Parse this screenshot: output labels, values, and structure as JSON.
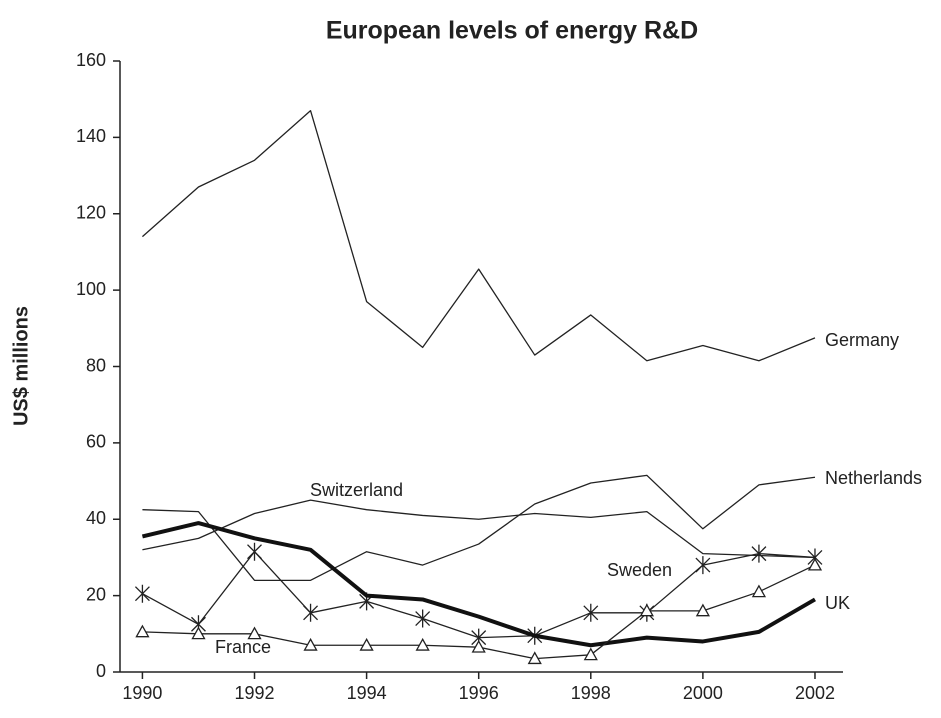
{
  "chart_data": {
    "type": "line",
    "title": "European levels of energy R&D",
    "y_label": "US$ millions",
    "x": [
      1990,
      1991,
      1992,
      1993,
      1994,
      1995,
      1996,
      1997,
      1998,
      1999,
      2000,
      2001,
      2002
    ],
    "xlim": [
      1989.6,
      2002.5
    ],
    "xticks": [
      1990,
      1992,
      1994,
      1996,
      1998,
      2000,
      2002
    ],
    "ylim": [
      0,
      160
    ],
    "yticks": [
      0,
      20,
      40,
      60,
      80,
      100,
      120,
      140,
      160
    ],
    "grid": false,
    "series": [
      {
        "name": "Germany",
        "color": "#222222",
        "line_width": 1.3,
        "marker": "none",
        "values": [
          114,
          127,
          134,
          147,
          97,
          85,
          105.5,
          83,
          93.5,
          81.5,
          85.5,
          81.5,
          87.5
        ]
      },
      {
        "name": "Netherlands",
        "color": "#222222",
        "line_width": 1.3,
        "marker": "none",
        "values": [
          42.5,
          42,
          24,
          24,
          31.5,
          28,
          33.5,
          44,
          49.5,
          51.5,
          37.5,
          49,
          51
        ]
      },
      {
        "name": "Switzerland",
        "color": "#222222",
        "line_width": 1.3,
        "marker": "none",
        "values": [
          32,
          35,
          41.5,
          45,
          42.5,
          41,
          40,
          41.5,
          40.5,
          42,
          31,
          30.5,
          30
        ]
      },
      {
        "name": "Sweden",
        "color": "#222222",
        "line_width": 1.3,
        "marker": "star",
        "values": [
          20.5,
          12.5,
          31.5,
          15.5,
          18.5,
          14,
          9,
          9.5,
          15.5,
          15.5,
          28,
          31,
          30
        ]
      },
      {
        "name": "UK",
        "color": "#111111",
        "line_width": 4,
        "marker": "none",
        "values": [
          35.5,
          39,
          35,
          32,
          20,
          19,
          14.5,
          9.5,
          7,
          9,
          8,
          10.5,
          19
        ]
      },
      {
        "name": "France",
        "color": "#222222",
        "line_width": 1.3,
        "marker": "triangle",
        "values": [
          10.5,
          10,
          10,
          7,
          7,
          7,
          6.5,
          3.5,
          4.5,
          16,
          16,
          21,
          28
        ]
      }
    ]
  }
}
